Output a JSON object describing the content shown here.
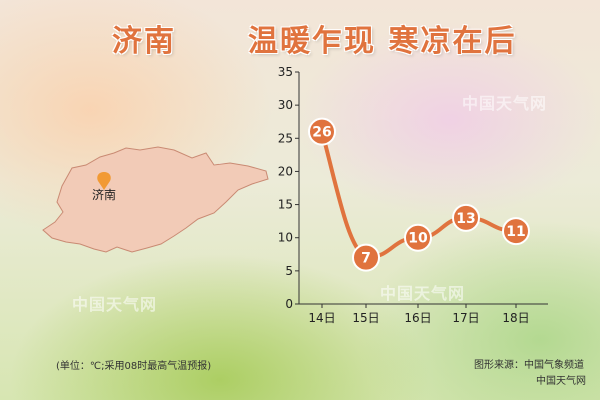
{
  "header": {
    "city": "济南",
    "title": "温暖乍现 寒凉在后"
  },
  "map": {
    "city_label": "济南"
  },
  "footer": {
    "unit_note": "(单位：℃;采用08时最高气温预报)",
    "source_line1": "图形来源：中国气象频道",
    "source_line2": "中国天气网"
  },
  "watermarks": [
    "中国天气网",
    "中国天气网",
    "中国天气网",
    "中国天气网"
  ],
  "colors": {
    "accent": "#e0733e",
    "map_fill": "#f2cbb7",
    "grid": "#bbbbbb"
  },
  "chart_data": {
    "type": "line",
    "title": "",
    "xlabel": "",
    "ylabel": "",
    "categories": [
      "14日",
      "15日",
      "16日",
      "17日",
      "18日"
    ],
    "values": [
      26,
      7,
      10,
      13,
      11
    ],
    "ylim": [
      0,
      35
    ],
    "yticks": [
      0,
      5,
      10,
      15,
      20,
      25,
      30,
      35
    ],
    "grid": false,
    "data_labels": true
  }
}
